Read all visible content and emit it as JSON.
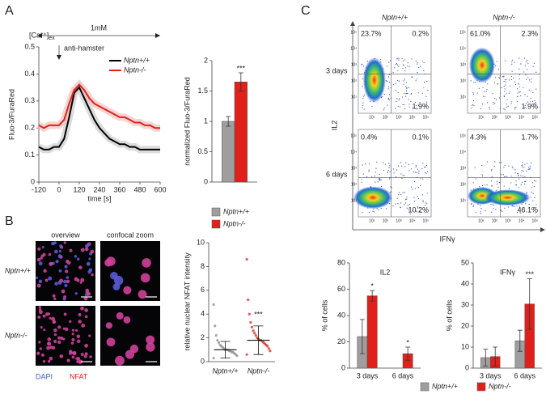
{
  "panels": [
    "A",
    "B",
    "C"
  ],
  "chart_data": [
    {
      "type": "line",
      "annotations": {
        "ion": "[Ca²⁺]",
        "ion_sub": "ex",
        "concentration": "1mM",
        "stimulus": "anti-hamster"
      },
      "x_label": "time [s]",
      "y_label": "Fluo-3/FuraRed",
      "x": [
        -120,
        -90,
        -60,
        -30,
        0,
        30,
        60,
        90,
        120,
        150,
        180,
        210,
        240,
        270,
        300,
        330,
        360,
        390,
        420,
        450,
        480,
        510,
        540,
        570,
        600
      ],
      "series": [
        {
          "name": "Nptn+/+",
          "color": "#000000",
          "values": [
            0.13,
            0.12,
            0.12,
            0.13,
            0.13,
            0.16,
            0.24,
            0.33,
            0.35,
            0.31,
            0.27,
            0.23,
            0.2,
            0.18,
            0.16,
            0.15,
            0.14,
            0.14,
            0.13,
            0.13,
            0.12,
            0.12,
            0.12,
            0.12,
            0.12
          ]
        },
        {
          "name": "Nptn-/-",
          "color": "#e0201b",
          "values": [
            0.21,
            0.2,
            0.21,
            0.21,
            0.21,
            0.23,
            0.29,
            0.34,
            0.36,
            0.34,
            0.31,
            0.29,
            0.28,
            0.27,
            0.26,
            0.25,
            0.24,
            0.24,
            0.23,
            0.22,
            0.22,
            0.21,
            0.21,
            0.2,
            0.2
          ]
        }
      ],
      "xlim": [
        -120,
        600
      ],
      "xticks": [
        -120,
        0,
        120,
        240,
        360,
        480,
        600
      ],
      "ylim": [
        0,
        0.5
      ],
      "yticks": [
        0,
        0.1,
        0.2,
        0.3,
        0.4,
        0.5
      ]
    },
    {
      "type": "bar",
      "y_label": "normalized Fluo-3/FuraRed",
      "categories": [
        null
      ],
      "series": [
        {
          "name": "Nptn+/+",
          "color": "#9e9e9e",
          "values": [
            1.0
          ],
          "errors": [
            0.08
          ],
          "annotations": [
            null
          ]
        },
        {
          "name": "Nptn-/-",
          "color": "#e0201b",
          "values": [
            1.65
          ],
          "errors": [
            0.15
          ],
          "annotations": [
            "***"
          ]
        }
      ],
      "ylim": [
        0,
        2
      ],
      "yticks": [
        0,
        0.5,
        1,
        1.5,
        2
      ]
    },
    {
      "type": "dot",
      "y_label": "relative nuclear NFAT intensity",
      "categories": [
        "Nptn+/+",
        "Nptn-/-"
      ],
      "points": [
        [
          0.3,
          0.5,
          0.6,
          0.7,
          0.8,
          0.8,
          0.9,
          0.9,
          1.0,
          1.0,
          1.0,
          1.1,
          1.2,
          1.3,
          1.4,
          1.6,
          1.8,
          2.2,
          3.0,
          4.8
        ],
        [
          0.6,
          0.9,
          1.1,
          1.3,
          1.4,
          1.5,
          1.6,
          1.7,
          1.8,
          1.8,
          1.9,
          2.0,
          2.2,
          2.4,
          2.6,
          2.9,
          3.3,
          4.0,
          5.2,
          8.6
        ]
      ],
      "colors": [
        "#8a8a8a",
        "#e0201b"
      ],
      "values": [
        1.0,
        1.8
      ],
      "errors": [
        0.7,
        1.2
      ],
      "annotations": [
        null,
        "***"
      ],
      "ylim": [
        0,
        10
      ],
      "yticks": [
        0,
        2,
        4,
        6,
        8,
        10
      ]
    },
    {
      "type": "bar",
      "title": "IL2",
      "y_label": "% of cells",
      "categories": [
        "3 days",
        "6 days"
      ],
      "series": [
        {
          "name": "Nptn+/+",
          "color": "#9e9e9e",
          "values": [
            24,
            null
          ],
          "errors": [
            13,
            null
          ],
          "annotations": [
            null,
            null
          ]
        },
        {
          "name": "Nptn-/-",
          "color": "#e0201b",
          "values": [
            55,
            11
          ],
          "errors": [
            4,
            5
          ],
          "annotations": [
            "*",
            "*"
          ]
        }
      ],
      "ylim": [
        0,
        80
      ],
      "yticks": [
        0,
        20,
        40,
        60,
        80
      ]
    },
    {
      "type": "bar",
      "title": "IFNγ",
      "y_label": "% of cells",
      "categories": [
        "3 days",
        "6 days"
      ],
      "series": [
        {
          "name": "Nptn+/+",
          "color": "#9e9e9e",
          "values": [
            5,
            13
          ],
          "errors": [
            4,
            5
          ],
          "annotations": [
            null,
            null
          ]
        },
        {
          "name": "Nptn-/-",
          "color": "#e0201b",
          "values": [
            5.5,
            30.5
          ],
          "errors": [
            4.5,
            12
          ],
          "annotations": [
            null,
            "***"
          ]
        }
      ],
      "ylim": [
        0,
        50
      ],
      "yticks": [
        0,
        10,
        20,
        30,
        40,
        50
      ]
    }
  ],
  "microscopy": {
    "columns": [
      "overview",
      "confocal zoom"
    ],
    "rows": [
      "Nptn+/+",
      "Nptn-/-"
    ],
    "stains": [
      "DAPI",
      "NFAT"
    ]
  },
  "flow": {
    "columns": [
      "Nptn+/+",
      "Nptn-/-"
    ],
    "rows": [
      "3 days",
      "6 days"
    ],
    "y_label": "IL2",
    "x_label": "IFNγ",
    "ticks": [
      "10⁰",
      "10¹",
      "10²",
      "10³",
      "10⁴",
      "10⁵"
    ],
    "plots": [
      {
        "quadrants": [
          "23.7%",
          "0.2%",
          "1.9%"
        ]
      },
      {
        "quadrants": [
          "61.0%",
          "2.3%",
          "1.9%"
        ]
      },
      {
        "quadrants": [
          "0.4%",
          "0.1%",
          "10.2%"
        ]
      },
      {
        "quadrants": [
          "4.3%",
          "1.7%",
          "46.1%"
        ]
      }
    ]
  }
}
